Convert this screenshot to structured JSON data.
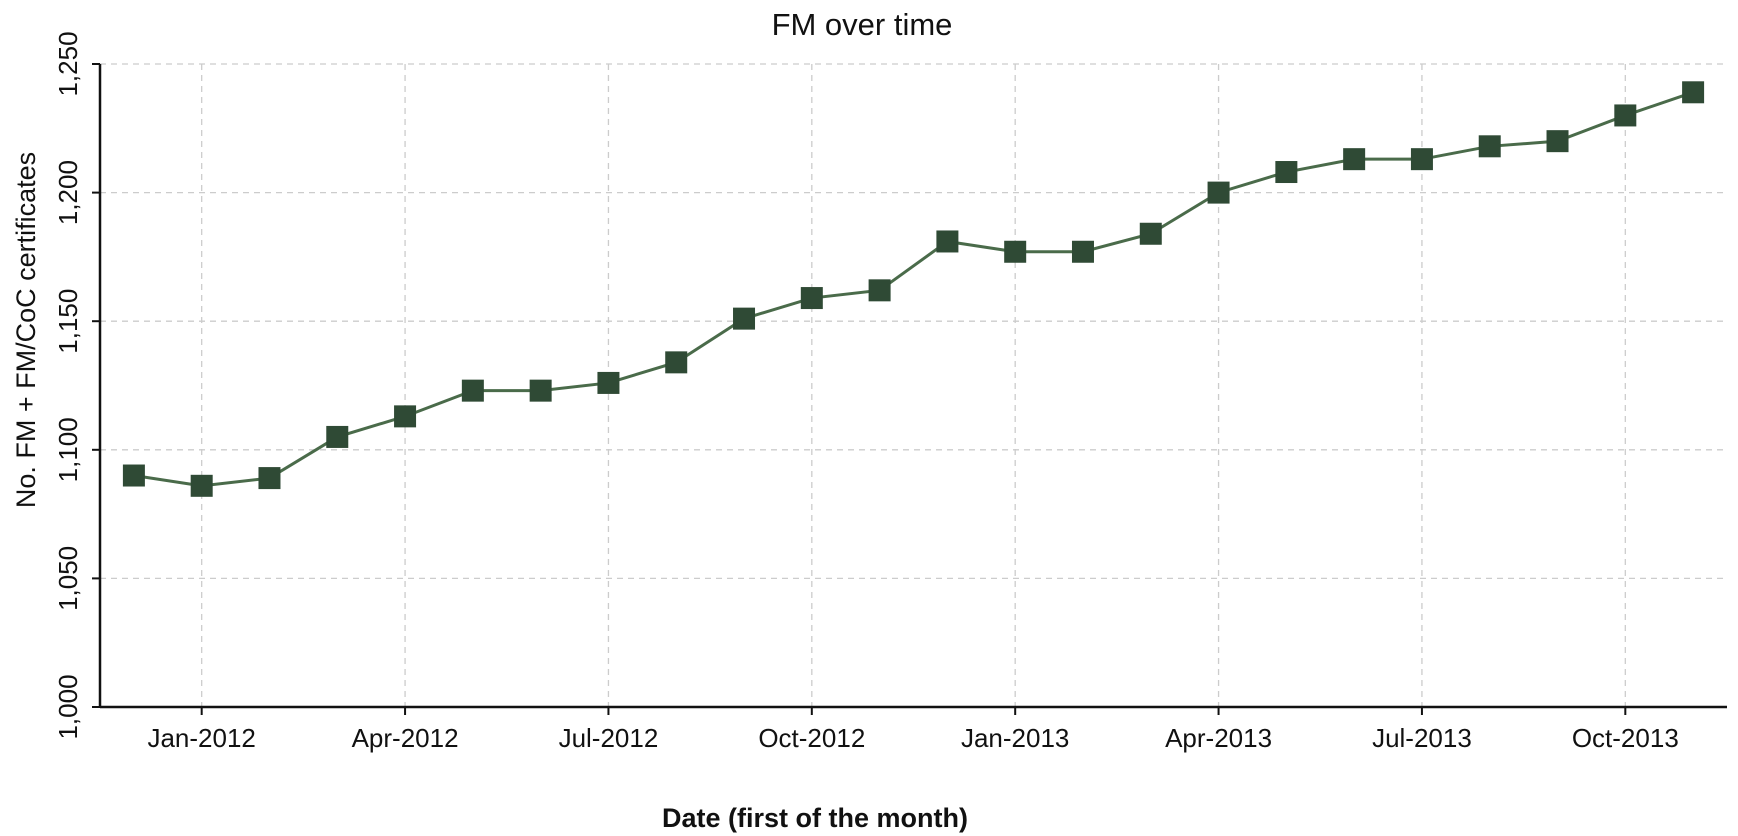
{
  "chart_data": {
    "type": "line",
    "title": "FM over time",
    "x_label": "Date (first of the month)",
    "y_label": "No. FM + FM/CoC certificates",
    "categories": [
      null,
      "Jan-2012",
      null,
      null,
      "Apr-2012",
      null,
      null,
      "Jul-2012",
      null,
      null,
      "Oct-2012",
      null,
      null,
      "Jan-2013",
      null,
      null,
      "Apr-2013",
      null,
      null,
      "Jul-2013",
      null,
      null,
      "Oct-2013",
      null
    ],
    "series": [
      {
        "name": "FM",
        "color": "#4a6b4a",
        "marker_color": "#2f4a35",
        "values": [
          1090,
          1086,
          1089,
          1105,
          1113,
          1123,
          1123,
          1126,
          1134,
          1151,
          1159,
          1162,
          1181,
          1177,
          1177,
          1184,
          1200,
          1208,
          1213,
          1213,
          1218,
          1220,
          1230,
          1239
        ]
      }
    ],
    "ylim": [
      1000,
      1250
    ],
    "yticks": [
      {
        "value": 1000,
        "label": "1,000"
      },
      {
        "value": 1050,
        "label": "1,050"
      },
      {
        "value": 1100,
        "label": "1,100"
      },
      {
        "value": 1150,
        "label": "1,150"
      },
      {
        "value": 1200,
        "label": "1,200"
      },
      {
        "value": 1250,
        "label": "1,250"
      }
    ],
    "grid": true
  }
}
